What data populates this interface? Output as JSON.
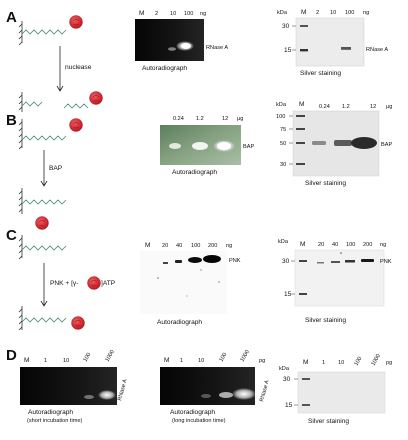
{
  "panels": {
    "A": {
      "label": "A",
      "step": "nuclease",
      "auto": {
        "marker": "M",
        "lanes": [
          "2",
          "10",
          "100"
        ],
        "unit": "ng",
        "band": "RNase A",
        "caption": "Autoradiograph"
      },
      "silver": {
        "kda": "kDa",
        "marks": [
          "30",
          "15"
        ],
        "marker": "M",
        "lanes": [
          "2",
          "10",
          "100"
        ],
        "unit": "ng",
        "band": "RNase A",
        "caption": "Silver staining"
      }
    },
    "B": {
      "label": "B",
      "step": "BAP",
      "auto": {
        "lanes": [
          "0.24",
          "1.2",
          "12"
        ],
        "unit": "µg",
        "band": "BAP",
        "caption": "Autoradiograph"
      },
      "silver": {
        "kda": "kDa",
        "marks": [
          "100",
          "75",
          "50",
          "30"
        ],
        "marker": "M",
        "lanes": [
          "0.24",
          "1.2",
          "12"
        ],
        "unit": "µg",
        "band": "BAP",
        "caption": "Silver staining"
      }
    },
    "C": {
      "label": "C",
      "step_pre": "PNK + [γ-",
      "step_post": "]ATP",
      "auto": {
        "marker": "M",
        "lanes": [
          "20",
          "40",
          "100",
          "200"
        ],
        "unit": "ng",
        "band": "PNK",
        "caption": "Autoradiograph"
      },
      "silver": {
        "kda": "kDa",
        "marks": [
          "30",
          "15"
        ],
        "marker": "M",
        "lanes": [
          "20",
          "40",
          "100",
          "200"
        ],
        "unit": "ng",
        "band": "PNK",
        "caption": "Silver staining"
      }
    },
    "D": {
      "label": "D",
      "auto_short": {
        "marker": "M",
        "lanes": [
          "1",
          "10",
          "100",
          "1000"
        ],
        "unit": "pg",
        "band": "RNase A",
        "caption_1": "Autoradiograph",
        "caption_2": "(short incubation time)"
      },
      "auto_long": {
        "marker": "M",
        "lanes": [
          "1",
          "10",
          "100",
          "1000"
        ],
        "unit": "pg",
        "band": "RNase A",
        "caption_1": "Autoradiograph",
        "caption_2": "(long incubation time)"
      },
      "silver": {
        "kda": "kDa",
        "marks": [
          "30",
          "15"
        ],
        "marker": "M",
        "lanes": [
          "1",
          "10",
          "100",
          "1000"
        ],
        "unit": "pg",
        "caption": "Silver staining"
      }
    }
  },
  "colors": {
    "probe": "#d4202a",
    "strand": "#4a8a7c",
    "gel_dark": "#141414",
    "gel_green": "#7f9e7c",
    "silver_bg": "#e8e8e8"
  }
}
